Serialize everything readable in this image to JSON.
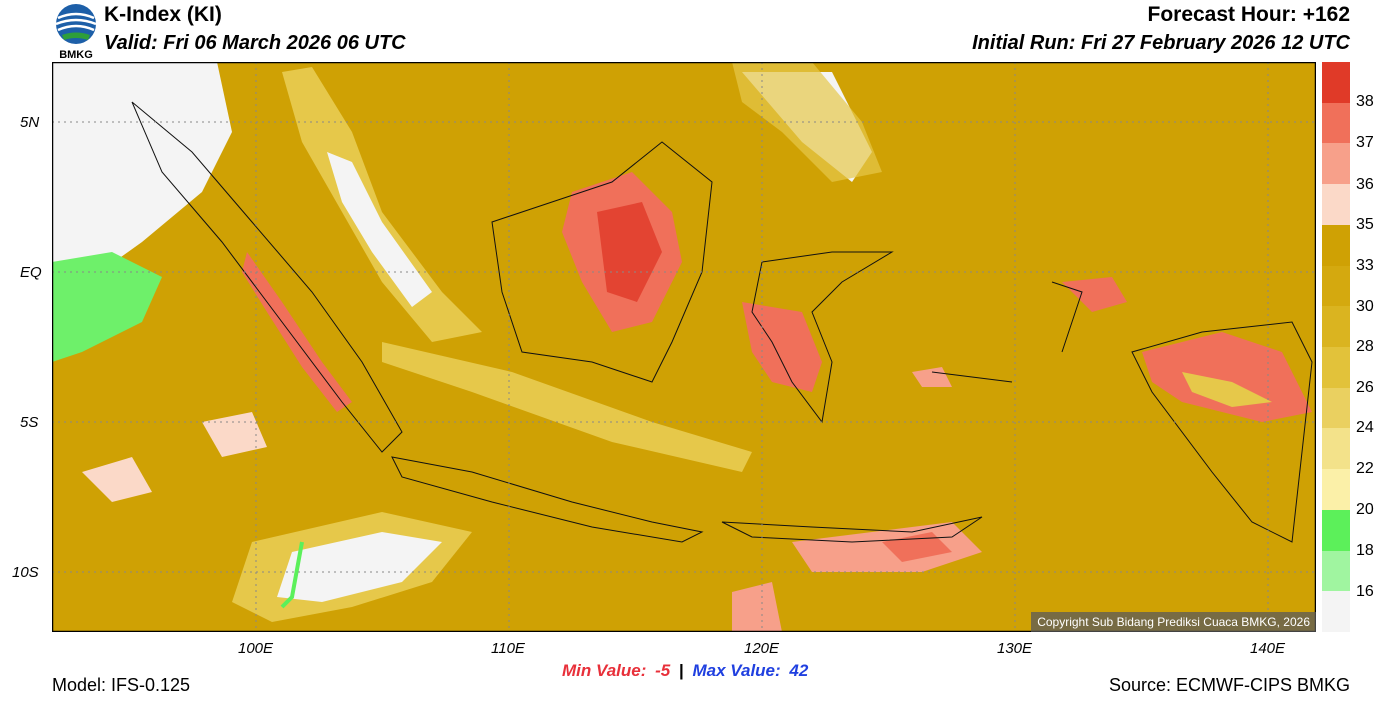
{
  "header": {
    "title": "K-Index (KI)",
    "valid": "Valid: Fri 06 March 2026 06 UTC",
    "forecast_hour": "Forecast Hour: +162",
    "initial_run": "Initial Run: Fri 27 February 2026 12 UTC",
    "logo_text": "BMKG"
  },
  "map": {
    "copyright": "Copyright Sub Bidang Prediksi Cuaca BMKG, 2026",
    "lon_labels": [
      "100E",
      "110E",
      "120E",
      "130E",
      "140E"
    ],
    "lat_labels": [
      "5N",
      "EQ",
      "5S",
      "10S"
    ]
  },
  "colorbar": {
    "labels": [
      "38",
      "37",
      "36",
      "35",
      "33",
      "30",
      "28",
      "26",
      "24",
      "22",
      "20",
      "18",
      "16"
    ],
    "colors": [
      "#e03a28",
      "#f0705a",
      "#f7a08a",
      "#fbd9c8",
      "#cfa104",
      "#d4a90f",
      "#dab420",
      "#e2c23a",
      "#ead060",
      "#f3e28a",
      "#fbf0a8",
      "#5cf05a",
      "#a0f5a0",
      "#f4f4f4"
    ]
  },
  "minmax": {
    "min_label": "Min Value:",
    "min_value": "-5",
    "separator": "|",
    "max_label": "Max Value:",
    "max_value": "42",
    "min_color": "#e8303a",
    "max_color": "#2040e0"
  },
  "footer": {
    "model": "Model: IFS-0.125",
    "source": "Source: ECMWF-CIPS BMKG"
  }
}
